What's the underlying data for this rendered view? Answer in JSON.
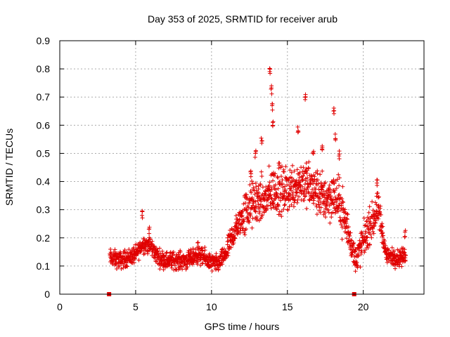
{
  "chart_data": {
    "type": "scatter",
    "title": "Day 353 of 2025, SRMTID for receiver arub",
    "xlabel": "GPS time / hours",
    "ylabel": "SRMTID / TECUs",
    "xlim": [
      0,
      24
    ],
    "ylim": [
      0,
      0.9
    ],
    "xticks": [
      "0",
      "5",
      "10",
      "15",
      "20"
    ],
    "yticks": [
      "0",
      "0.1",
      "0.2",
      "0.3",
      "0.4",
      "0.5",
      "0.6",
      "0.7",
      "0.8",
      "0.9"
    ],
    "grid": true,
    "marker": "plus",
    "color": "#e00000",
    "zero_markers_x": [
      3.25,
      19.4
    ],
    "anchor_points": [
      [
        3.3,
        0.13
      ],
      [
        4.0,
        0.12
      ],
      [
        4.5,
        0.13
      ],
      [
        5.0,
        0.14
      ],
      [
        5.5,
        0.18
      ],
      [
        6.0,
        0.17
      ],
      [
        6.5,
        0.13
      ],
      [
        7.0,
        0.12
      ],
      [
        7.5,
        0.12
      ],
      [
        8.0,
        0.12
      ],
      [
        8.5,
        0.12
      ],
      [
        9.0,
        0.14
      ],
      [
        9.5,
        0.13
      ],
      [
        10.0,
        0.11
      ],
      [
        10.5,
        0.11
      ],
      [
        11.0,
        0.15
      ],
      [
        11.5,
        0.22
      ],
      [
        12.0,
        0.27
      ],
      [
        12.5,
        0.31
      ],
      [
        13.0,
        0.33
      ],
      [
        13.5,
        0.33
      ],
      [
        14.0,
        0.37
      ],
      [
        14.5,
        0.36
      ],
      [
        15.0,
        0.37
      ],
      [
        15.5,
        0.39
      ],
      [
        16.0,
        0.4
      ],
      [
        16.5,
        0.38
      ],
      [
        17.0,
        0.36
      ],
      [
        17.5,
        0.34
      ],
      [
        18.0,
        0.35
      ],
      [
        18.5,
        0.32
      ],
      [
        19.0,
        0.22
      ],
      [
        19.5,
        0.12
      ],
      [
        20.0,
        0.19
      ],
      [
        20.5,
        0.25
      ],
      [
        21.0,
        0.3
      ],
      [
        21.5,
        0.14
      ],
      [
        22.0,
        0.13
      ],
      [
        22.5,
        0.13
      ],
      [
        22.8,
        0.14
      ]
    ],
    "peaks": [
      [
        5.45,
        0.3
      ],
      [
        5.9,
        0.24
      ],
      [
        9.1,
        0.19
      ],
      [
        12.6,
        0.44
      ],
      [
        12.9,
        0.51
      ],
      [
        13.3,
        0.56
      ],
      [
        13.85,
        0.81
      ],
      [
        13.95,
        0.74
      ],
      [
        14.0,
        0.68
      ],
      [
        14.05,
        0.62
      ],
      [
        14.45,
        0.47
      ],
      [
        15.7,
        0.6
      ],
      [
        16.2,
        0.71
      ],
      [
        16.7,
        0.51
      ],
      [
        17.3,
        0.53
      ],
      [
        18.05,
        0.67
      ],
      [
        18.15,
        0.57
      ],
      [
        18.4,
        0.51
      ],
      [
        20.9,
        0.41
      ],
      [
        22.75,
        0.23
      ]
    ]
  }
}
